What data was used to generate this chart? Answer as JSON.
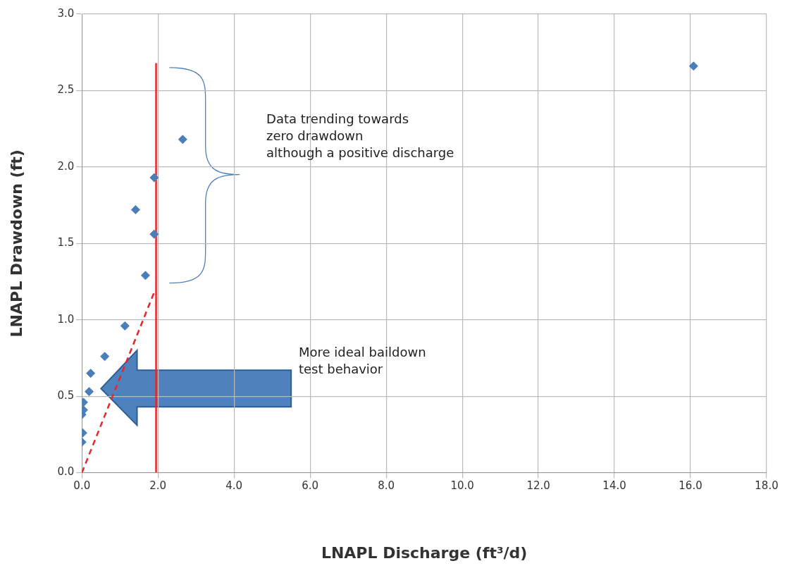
{
  "chart_data": {
    "type": "scatter",
    "xlabel": "LNAPL Discharge (ft³/d)",
    "ylabel": "LNAPL Drawdown (ft)",
    "xlim": [
      0,
      18
    ],
    "ylim": [
      0,
      3
    ],
    "xticks": [
      {
        "value": 0,
        "label": "0.0"
      },
      {
        "value": 2,
        "label": "2.0"
      },
      {
        "value": 4,
        "label": "4.0"
      },
      {
        "value": 6,
        "label": "6.0"
      },
      {
        "value": 8,
        "label": "8.0"
      },
      {
        "value": 10,
        "label": "10.0"
      },
      {
        "value": 12,
        "label": "12.0"
      },
      {
        "value": 14,
        "label": "14.0"
      },
      {
        "value": 16,
        "label": "16.0"
      },
      {
        "value": 18,
        "label": "18.0"
      }
    ],
    "yticks": [
      {
        "value": 0,
        "label": "0.0"
      },
      {
        "value": 0.5,
        "label": "0.5"
      },
      {
        "value": 1,
        "label": "1.0"
      },
      {
        "value": 1.5,
        "label": "1.5"
      },
      {
        "value": 2,
        "label": "2.0"
      },
      {
        "value": 2.5,
        "label": "2.5"
      },
      {
        "value": 3,
        "label": "3.0"
      }
    ],
    "grid": true,
    "legend": false,
    "marker": "diamond",
    "series": [
      {
        "color": "#4a7ebb",
        "x": [
          16.08,
          2.65,
          1.9,
          1.41,
          1.9,
          1.67,
          1.13,
          0.6,
          0.23,
          0.19,
          0.04,
          0.04,
          0.0,
          0.02,
          0.0
        ],
        "values": [
          2.66,
          2.18,
          1.93,
          1.72,
          1.56,
          1.29,
          0.96,
          0.76,
          0.65,
          0.53,
          0.46,
          0.41,
          0.38,
          0.26,
          0.2
        ]
      },
      {
        "type": "line",
        "color": "#e8262a",
        "line_style": "solid",
        "marker": "none",
        "x": [
          1.95,
          1.95
        ],
        "values": [
          0,
          2.68
        ]
      },
      {
        "type": "line",
        "color": "#e8262a",
        "line_style": "dashed",
        "marker": "none",
        "x": [
          0,
          1.9
        ],
        "values": [
          0,
          1.18
        ]
      }
    ],
    "annotations": [
      "Data trending towards\nzero drawdown\nalthough a positive discharge",
      "More ideal baildown\ntest behavior"
    ]
  }
}
